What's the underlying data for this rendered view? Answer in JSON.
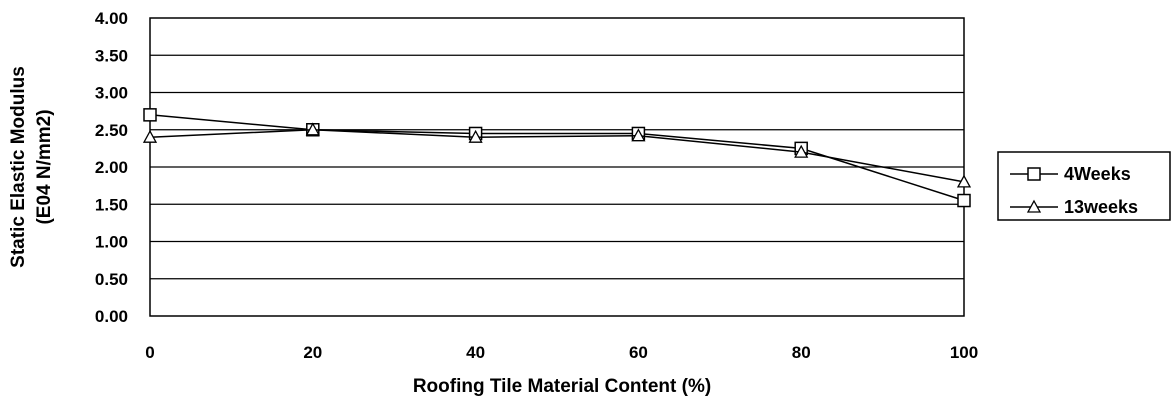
{
  "chart_data": {
    "type": "line",
    "title": "",
    "xlabel": "Roofing Tile Material Content (%)",
    "ylabel": "Static Elastic Modulus",
    "ylabel2": "(E04 N/mm2)",
    "x": [
      0,
      20,
      40,
      60,
      80,
      100
    ],
    "x_tick_labels": [
      "0",
      "20",
      "40",
      "60",
      "80",
      "100"
    ],
    "y_tick_labels": [
      "0.00",
      "0.50",
      "1.00",
      "1.50",
      "2.00",
      "2.50",
      "3.00",
      "3.50",
      "4.00"
    ],
    "xlim": [
      0,
      100
    ],
    "ylim": [
      0,
      4
    ],
    "grid": "horizontal",
    "legend_position": "right",
    "series": [
      {
        "name": "4Weeks",
        "marker": "square",
        "values": [
          2.7,
          2.5,
          2.45,
          2.45,
          2.25,
          1.55
        ]
      },
      {
        "name": "13weeks",
        "marker": "triangle",
        "values": [
          2.4,
          2.5,
          2.4,
          2.42,
          2.2,
          1.8
        ]
      }
    ]
  }
}
